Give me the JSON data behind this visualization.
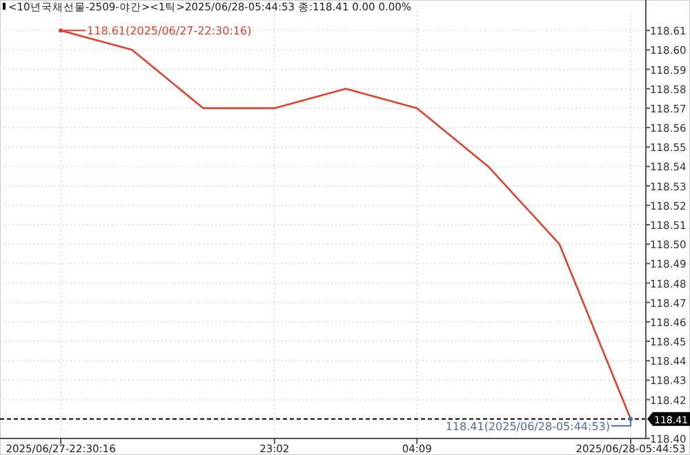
{
  "chart_data": {
    "type": "line",
    "title": "<10년국채선물-2509-야간><1틱>2025/06/28-05:44:53 종:118.41 0.00 0.00%",
    "categories": [
      "2025/06/27-22:30:16",
      null,
      null,
      "23:02",
      null,
      "04:09",
      null,
      null,
      "2025/06/28-05:44:53"
    ],
    "series": [
      {
        "color": "#d9432e",
        "values": [
          118.61,
          118.6,
          118.57,
          118.57,
          118.58,
          118.57,
          118.54,
          118.5,
          118.41
        ]
      }
    ],
    "ylim": [
      118.4,
      118.62
    ],
    "yticks": [
      {
        "value": 118.4,
        "label": "118.40"
      },
      118.42,
      118.43,
      118.44,
      118.45,
      118.46,
      118.47,
      118.48,
      118.49,
      {
        "value": 118.5,
        "label": "118.50"
      },
      118.51,
      118.52,
      118.53,
      118.54,
      118.55,
      118.56,
      118.57,
      118.58,
      118.59,
      {
        "value": 118.6,
        "label": "118.60"
      },
      118.61
    ],
    "ref_lines": [
      {
        "axis": "y",
        "value": 118.41,
        "label": "118.41",
        "color": "#000000",
        "line_style": "dashed"
      }
    ],
    "annotations": [
      {
        "text": "118.61(2025/06/27-22:30:16)",
        "x": "2025/06/27-22:30:16",
        "y": 118.61
      },
      "118.41(2025/06/28-05:44:53)"
    ],
    "grid": true,
    "marker": "none",
    "line_style": "solid"
  }
}
